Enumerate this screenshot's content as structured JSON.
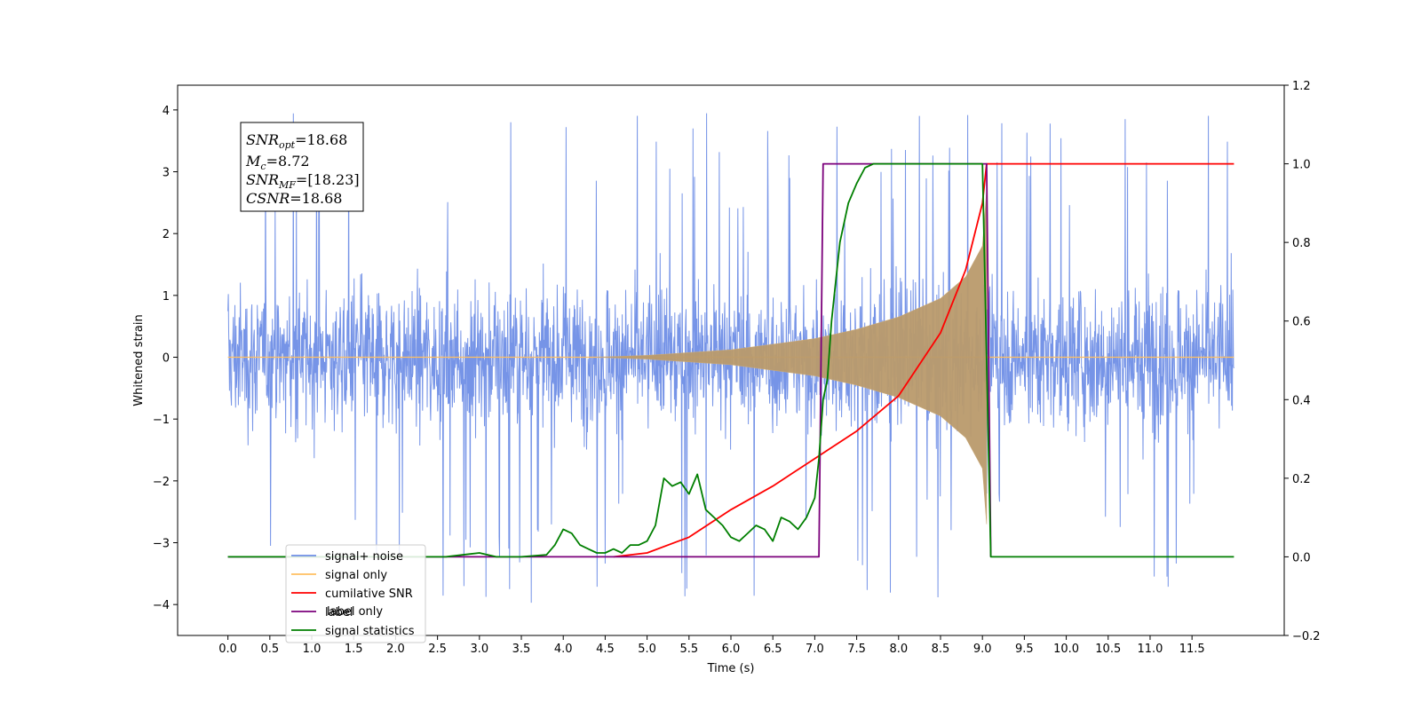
{
  "chart_data": {
    "type": "line",
    "xlabel": "Time (s)",
    "ylabel": "Whitened strain",
    "y2label": "",
    "xlim": [
      -0.6,
      12.6
    ],
    "ylim": [
      -4.5,
      4.4
    ],
    "y2lim": [
      -0.2,
      1.2
    ],
    "x_ticks": [
      0.0,
      0.5,
      1.0,
      1.5,
      2.0,
      2.5,
      3.0,
      3.5,
      4.0,
      4.5,
      5.0,
      5.5,
      6.0,
      6.5,
      7.0,
      7.5,
      8.0,
      8.5,
      9.0,
      9.5,
      10.0,
      10.5,
      11.0,
      11.5
    ],
    "x_tick_labels": [
      "0.0",
      "0.5",
      "1.0",
      "1.5",
      "2.0",
      "2.5",
      "3.0",
      "3.5",
      "4.0",
      "4.5",
      "5.0",
      "5.5",
      "6.0",
      "6.5",
      "7.0",
      "7.5",
      "8.0",
      "8.5",
      "9.0",
      "9.5",
      "10.0",
      "10.5",
      "11.0",
      "11.5"
    ],
    "y_ticks": [
      -4,
      -3,
      -2,
      -1,
      0,
      1,
      2,
      3,
      4
    ],
    "y_tick_labels": [
      "−4",
      "−3",
      "−2",
      "−1",
      "0",
      "1",
      "2",
      "3",
      "4"
    ],
    "y2_ticks": [
      -0.2,
      0.0,
      0.2,
      0.4,
      0.6,
      0.8,
      1.0,
      1.2
    ],
    "y2_tick_labels": [
      "−0.2",
      "0.0",
      "0.2",
      "0.4",
      "0.6",
      "0.8",
      "1.0",
      "1.2"
    ],
    "grid": false,
    "legend_position": "lower-left",
    "annotation": {
      "snr_opt": {
        "base": "SNR",
        "sub": "opt",
        "value": "=18.68"
      },
      "mc": {
        "base": "M",
        "sub": "c",
        "value": "=8.72"
      },
      "snr_mf": {
        "base": "SNR",
        "sub": "MF",
        "value": "=[18.23]"
      },
      "csnr": {
        "base": "CSNR",
        "sub": "",
        "value": "=18.68"
      }
    },
    "series": [
      {
        "name": "signal+ noise",
        "axis": "left",
        "color": "#6f8ee6",
        "kind": "noise",
        "x_range": [
          0.0,
          12.0
        ],
        "envelope_abs": 2.4,
        "spike_max": 4.0
      },
      {
        "name": "signal only",
        "axis": "left",
        "color": "#ffbf60",
        "kind": "chirp",
        "x_range": [
          4.4,
          9.05
        ],
        "envelope_points": [
          [
            4.4,
            0.0
          ],
          [
            5.0,
            0.03
          ],
          [
            6.0,
            0.12
          ],
          [
            7.0,
            0.3
          ],
          [
            7.5,
            0.45
          ],
          [
            8.0,
            0.65
          ],
          [
            8.5,
            0.95
          ],
          [
            8.8,
            1.3
          ],
          [
            9.0,
            1.8
          ],
          [
            9.05,
            2.7
          ]
        ]
      },
      {
        "name": "cumilative SNR",
        "axis": "right",
        "color": "#ff0000",
        "x": [
          4.6,
          5.0,
          5.5,
          6.0,
          6.5,
          7.0,
          7.5,
          8.0,
          8.5,
          8.8,
          9.0,
          9.05,
          9.1,
          12.0
        ],
        "values": [
          0.0,
          0.01,
          0.05,
          0.12,
          0.18,
          0.25,
          0.32,
          0.41,
          0.57,
          0.73,
          0.9,
          1.0,
          1.0,
          1.0
        ]
      },
      {
        "name": "label",
        "axis": "right",
        "color": "#7b007b",
        "x": [
          0.0,
          7.05,
          7.1,
          9.05,
          9.1
        ],
        "values": [
          0.0,
          0.0,
          1.0,
          1.0,
          0.0
        ]
      },
      {
        "name": "label only",
        "axis": "right",
        "color": "#cfcfcf",
        "hidden_under_legend": true
      },
      {
        "name": "signal statistics",
        "axis": "right",
        "color": "#007f00",
        "x": [
          0.0,
          2.6,
          2.8,
          3.0,
          3.2,
          3.5,
          3.8,
          3.9,
          4.0,
          4.1,
          4.2,
          4.3,
          4.4,
          4.5,
          4.6,
          4.7,
          4.8,
          4.9,
          5.0,
          5.1,
          5.2,
          5.3,
          5.4,
          5.5,
          5.6,
          5.7,
          5.8,
          5.9,
          6.0,
          6.1,
          6.2,
          6.3,
          6.4,
          6.5,
          6.6,
          6.7,
          6.8,
          6.9,
          7.0,
          7.05,
          7.1,
          7.15,
          7.2,
          7.25,
          7.3,
          7.4,
          7.5,
          7.6,
          7.7,
          7.8,
          8.0,
          9.0,
          9.1,
          12.0
        ],
        "values": [
          0.0,
          0.0,
          0.005,
          0.01,
          0.0,
          0.0,
          0.005,
          0.03,
          0.07,
          0.06,
          0.03,
          0.02,
          0.01,
          0.01,
          0.02,
          0.01,
          0.03,
          0.03,
          0.04,
          0.08,
          0.2,
          0.18,
          0.19,
          0.16,
          0.21,
          0.12,
          0.1,
          0.08,
          0.05,
          0.04,
          0.06,
          0.08,
          0.07,
          0.04,
          0.1,
          0.09,
          0.07,
          0.1,
          0.15,
          0.25,
          0.4,
          0.45,
          0.6,
          0.7,
          0.8,
          0.9,
          0.95,
          0.99,
          1.0,
          1.0,
          1.0,
          1.0,
          0.0,
          0.0
        ]
      }
    ]
  }
}
